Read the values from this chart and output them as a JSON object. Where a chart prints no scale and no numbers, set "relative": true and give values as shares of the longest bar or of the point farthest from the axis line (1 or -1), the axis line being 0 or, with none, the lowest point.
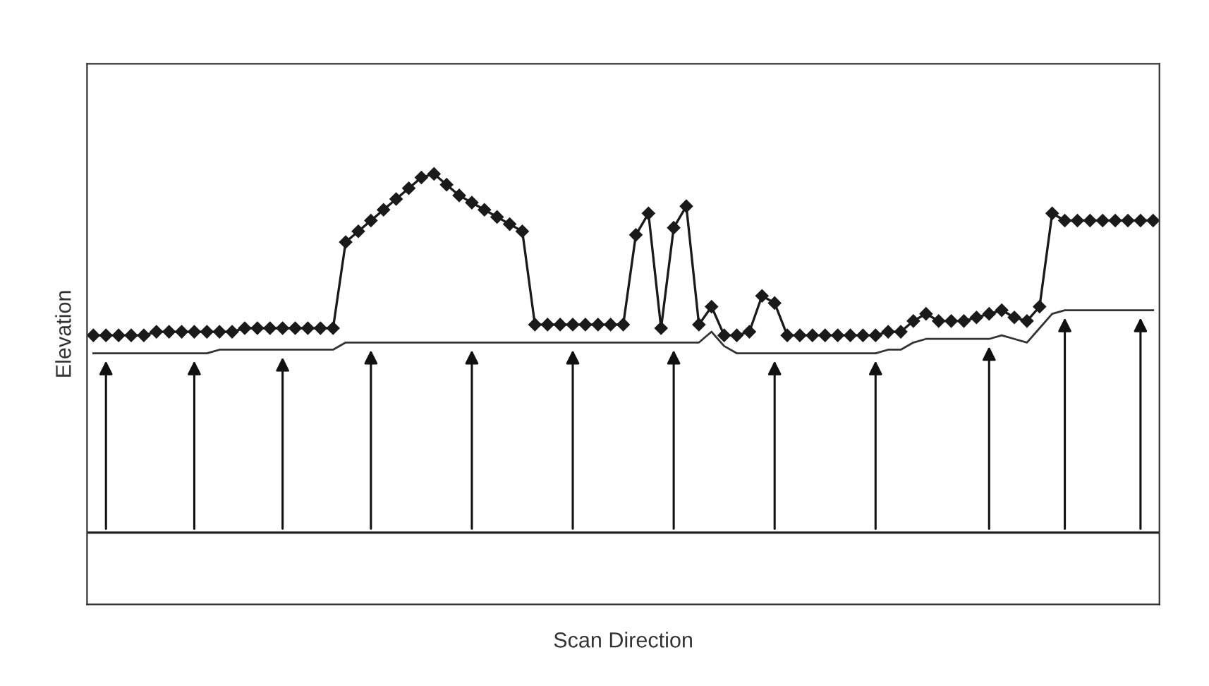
{
  "chart_data": {
    "type": "line",
    "relative": true,
    "xlabel": "Scan Direction",
    "ylabel": "Elevation",
    "legend": false,
    "line_style": "solid",
    "categories": [
      null,
      null,
      null,
      null,
      null,
      null,
      null,
      null,
      null,
      null,
      null,
      null,
      null,
      null,
      null,
      null,
      null,
      null,
      null,
      null,
      null,
      null,
      null,
      null,
      null,
      null,
      null,
      null,
      null,
      null,
      null,
      null,
      null,
      null,
      null,
      null,
      null,
      null,
      null,
      null,
      null,
      null,
      null,
      null,
      null,
      null,
      null,
      null,
      null,
      null,
      null,
      null,
      null,
      null,
      null,
      null,
      null,
      null,
      null,
      null,
      null,
      null,
      null,
      null,
      null,
      null,
      null,
      null,
      null,
      null,
      null,
      null,
      null,
      null,
      null,
      null,
      null,
      null,
      null,
      null,
      null,
      null,
      null,
      null,
      null
    ],
    "series": [
      {
        "color": "#1a1a1a",
        "marker": "diamond",
        "values": [
          0.55,
          0.55,
          0.55,
          0.55,
          0.55,
          0.56,
          0.56,
          0.56,
          0.56,
          0.56,
          0.56,
          0.56,
          0.57,
          0.57,
          0.57,
          0.57,
          0.57,
          0.57,
          0.57,
          0.57,
          0.81,
          0.84,
          0.87,
          0.9,
          0.93,
          0.96,
          0.99,
          1.0,
          0.97,
          0.94,
          0.92,
          0.9,
          0.88,
          0.86,
          0.84,
          0.58,
          0.58,
          0.58,
          0.58,
          0.58,
          0.58,
          0.58,
          0.58,
          0.83,
          0.89,
          0.57,
          0.85,
          0.91,
          0.58,
          0.63,
          0.55,
          0.55,
          0.56,
          0.66,
          0.64,
          0.55,
          0.55,
          0.55,
          0.55,
          0.55,
          0.55,
          0.55,
          0.55,
          0.56,
          0.56,
          0.59,
          0.61,
          0.59,
          0.59,
          0.59,
          0.6,
          0.61,
          0.62,
          0.6,
          0.59,
          0.63,
          0.89,
          0.87,
          0.87,
          0.87,
          0.87,
          0.87,
          0.87,
          0.87,
          0.87
        ]
      },
      {
        "color": "#333333",
        "marker": "none",
        "values": [
          0.5,
          0.5,
          0.5,
          0.5,
          0.5,
          0.5,
          0.5,
          0.5,
          0.5,
          0.5,
          0.51,
          0.51,
          0.51,
          0.51,
          0.51,
          0.51,
          0.51,
          0.51,
          0.51,
          0.51,
          0.53,
          0.53,
          0.53,
          0.53,
          0.53,
          0.53,
          0.53,
          0.53,
          0.53,
          0.53,
          0.53,
          0.53,
          0.53,
          0.53,
          0.53,
          0.53,
          0.53,
          0.53,
          0.53,
          0.53,
          0.53,
          0.53,
          0.53,
          0.53,
          0.53,
          0.53,
          0.53,
          0.53,
          0.53,
          0.56,
          0.52,
          0.5,
          0.5,
          0.5,
          0.5,
          0.5,
          0.5,
          0.5,
          0.5,
          0.5,
          0.5,
          0.5,
          0.5,
          0.51,
          0.51,
          0.53,
          0.54,
          0.54,
          0.54,
          0.54,
          0.54,
          0.54,
          0.55,
          0.54,
          0.53,
          0.57,
          0.61,
          0.62,
          0.62,
          0.62,
          0.62,
          0.62,
          0.62,
          0.62,
          0.62
        ]
      }
    ]
  }
}
